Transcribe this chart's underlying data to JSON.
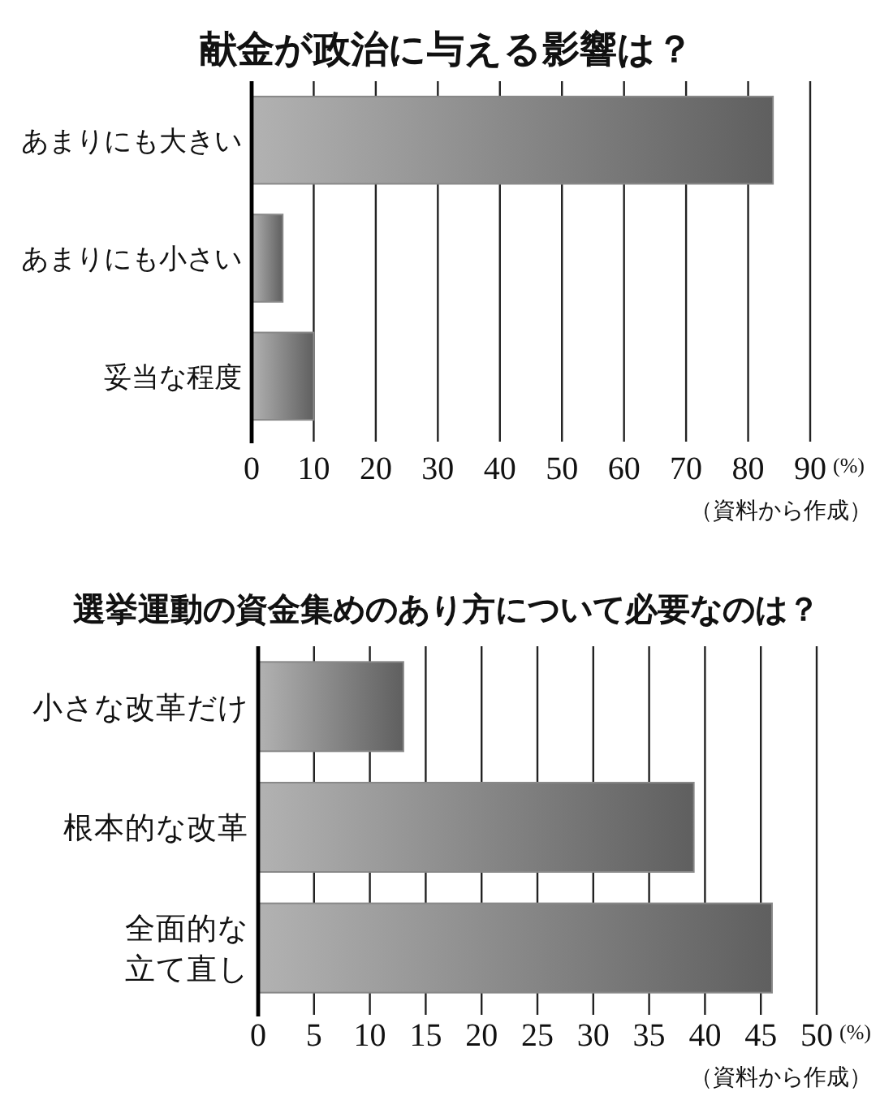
{
  "chart_data": [
    {
      "type": "bar",
      "orientation": "horizontal",
      "title": "献金が政治に与える影響は？",
      "categories": [
        "あまりにも大きい",
        "あまりにも小さい",
        "妥当な程度"
      ],
      "values": [
        84,
        5,
        10
      ],
      "color": "#888888",
      "xlim": [
        0,
        90
      ],
      "xticks": [
        0,
        10,
        20,
        30,
        40,
        50,
        60,
        70,
        80,
        90
      ],
      "xlabel": "(%)",
      "grid": "x",
      "annotations": [
        "（資料から作成）"
      ]
    },
    {
      "type": "bar",
      "orientation": "horizontal",
      "title": "選挙運動の資金集めのあり方について必要なのは？",
      "categories": [
        "小さな改革だけ",
        "根本的な改革",
        "全面的な立て直し"
      ],
      "values": [
        13,
        39,
        46
      ],
      "color": "#888888",
      "xlim": [
        0,
        50
      ],
      "xticks": [
        0,
        5,
        10,
        15,
        20,
        25,
        30,
        35,
        40,
        45,
        50
      ],
      "xlabel": "(%)",
      "grid": "x",
      "annotations": [
        "（資料から作成）"
      ]
    }
  ]
}
